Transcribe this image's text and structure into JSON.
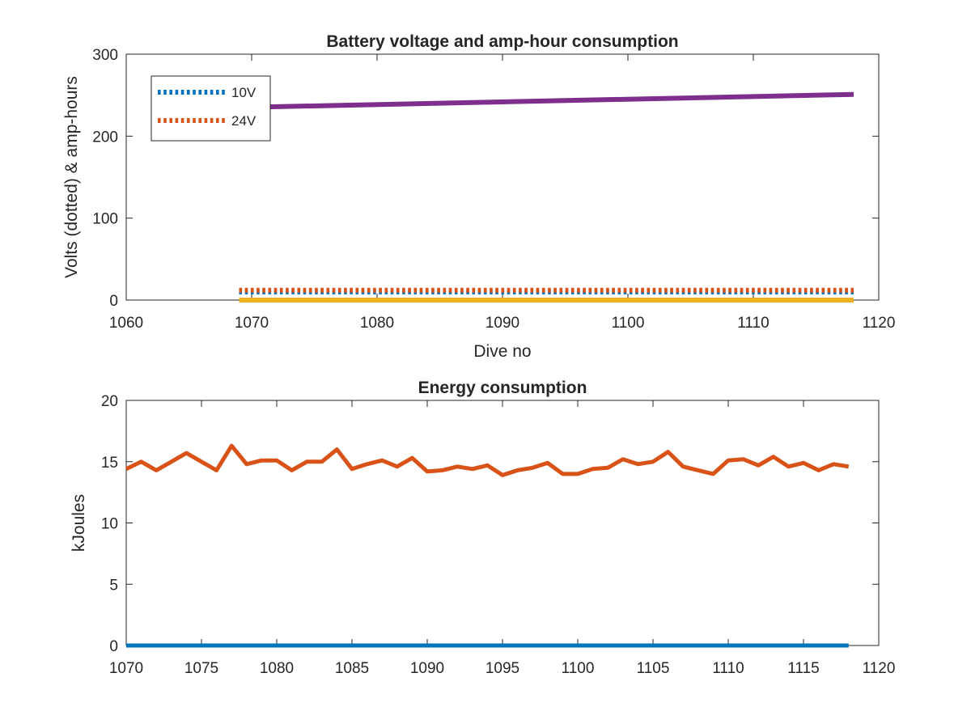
{
  "chart_data": [
    {
      "type": "line",
      "title": "Battery voltage and amp-hour consumption",
      "xlabel": "Dive no",
      "ylabel": "Volts (dotted) & amp-hours",
      "xlim": [
        1060,
        1120
      ],
      "ylim": [
        0,
        300
      ],
      "xticks": [
        1060,
        1070,
        1080,
        1090,
        1100,
        1110,
        1120
      ],
      "yticks": [
        0,
        100,
        200,
        300
      ],
      "grid": false,
      "legend_position": "top-left",
      "series": [
        {
          "name": "10V",
          "style": "dotted",
          "color": "#0072BD",
          "x": [
            1069,
            1118
          ],
          "y": [
            10,
            10
          ]
        },
        {
          "name": "24V",
          "style": "dotted",
          "color": "#D95319",
          "x": [
            1069,
            1118
          ],
          "y": [
            12,
            12
          ]
        },
        {
          "style": "solid",
          "color": "#EDB120",
          "x": [
            1069,
            1118
          ],
          "y": [
            0,
            0
          ]
        },
        {
          "style": "solid",
          "color": "#7E2F8E",
          "x": [
            1069,
            1118
          ],
          "y": [
            235,
            251
          ]
        }
      ]
    },
    {
      "type": "line",
      "title": "Energy consumption",
      "xlabel": "",
      "ylabel": "kJoules",
      "xlim": [
        1070,
        1120
      ],
      "ylim": [
        0,
        20
      ],
      "xticks": [
        1070,
        1075,
        1080,
        1085,
        1090,
        1095,
        1100,
        1105,
        1110,
        1115,
        1120
      ],
      "yticks": [
        0,
        5,
        10,
        15,
        20
      ],
      "grid": false,
      "series": [
        {
          "style": "solid",
          "color": "#0072BD",
          "x": [
            1070,
            1118
          ],
          "y": [
            0,
            0
          ]
        },
        {
          "style": "solid",
          "color": "#D95319",
          "x": [
            1070,
            1071,
            1072,
            1073,
            1074,
            1075,
            1076,
            1077,
            1078,
            1079,
            1080,
            1081,
            1082,
            1083,
            1084,
            1085,
            1086,
            1087,
            1088,
            1089,
            1090,
            1091,
            1092,
            1093,
            1094,
            1095,
            1096,
            1097,
            1098,
            1099,
            1100,
            1101,
            1102,
            1103,
            1104,
            1105,
            1106,
            1107,
            1108,
            1109,
            1110,
            1111,
            1112,
            1113,
            1114,
            1115,
            1116,
            1117,
            1118
          ],
          "y": [
            14.4,
            15.0,
            14.3,
            15.0,
            15.7,
            15.0,
            14.3,
            16.3,
            14.8,
            15.1,
            15.1,
            14.3,
            15.0,
            15.0,
            16.0,
            14.4,
            14.8,
            15.1,
            14.6,
            15.3,
            14.2,
            14.3,
            14.6,
            14.4,
            14.7,
            13.9,
            14.3,
            14.5,
            14.9,
            14.0,
            14.0,
            14.4,
            14.5,
            15.2,
            14.8,
            15.0,
            15.8,
            14.6,
            14.3,
            14.0,
            15.1,
            15.2,
            14.7,
            15.4,
            14.6,
            14.9,
            14.3,
            14.8,
            14.6
          ]
        }
      ]
    }
  ]
}
